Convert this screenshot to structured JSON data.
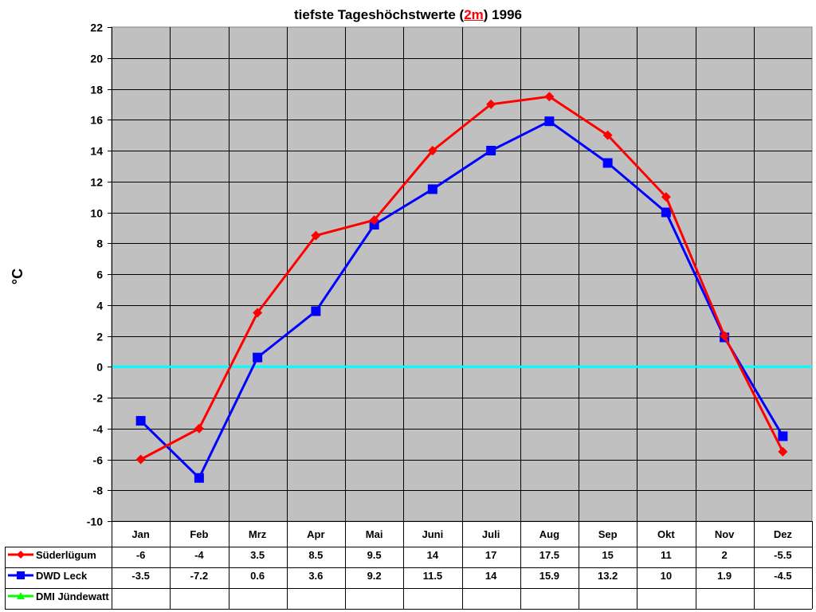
{
  "chart_data": {
    "type": "line",
    "title": "tiefste Tageshöchstwerte (2m) 1996",
    "title_parts": [
      "tiefste Tageshöchstwerte (",
      "2m",
      ") 1996"
    ],
    "xlabel": "",
    "ylabel": "°C",
    "ylim": [
      -10,
      22
    ],
    "ytick_step": 2,
    "yticks": [
      22,
      20,
      18,
      16,
      14,
      12,
      10,
      8,
      6,
      4,
      2,
      0,
      -2,
      -4,
      -6,
      -8,
      -10
    ],
    "grid": true,
    "zero_line_color": "#00ffff",
    "plot_background": "#c0c0c0",
    "legend_position": "data-table-left",
    "categories": [
      "Jan",
      "Feb",
      "Mrz",
      "Apr",
      "Mai",
      "Juni",
      "Juli",
      "Aug",
      "Sep",
      "Okt",
      "Nov",
      "Dez"
    ],
    "series": [
      {
        "name": "Süderlügum",
        "color": "#ff0000",
        "marker": "diamond",
        "values": [
          -6,
          -4,
          3.5,
          8.5,
          9.5,
          14,
          17,
          17.5,
          15,
          11,
          2,
          -5.5
        ],
        "labels": [
          "-6",
          "-4",
          "3.5",
          "8.5",
          "9.5",
          "14",
          "17",
          "17.5",
          "15",
          "11",
          "2",
          "-5.5"
        ]
      },
      {
        "name": "DWD Leck",
        "color": "#0000ff",
        "marker": "square",
        "values": [
          -3.5,
          -7.2,
          0.6,
          3.6,
          9.2,
          11.5,
          14,
          15.9,
          13.2,
          10,
          1.9,
          -4.5
        ],
        "labels": [
          "-3.5",
          "-7.2",
          "0.6",
          "3.6",
          "9.2",
          "11.5",
          "14",
          "15.9",
          "13.2",
          "10",
          "1.9",
          "-4.5"
        ]
      },
      {
        "name": "DMI Jündewatt",
        "color": "#00ff00",
        "marker": "triangle",
        "values": [
          null,
          null,
          null,
          null,
          null,
          null,
          null,
          null,
          null,
          null,
          null,
          null
        ],
        "labels": [
          "",
          "",
          "",
          "",
          "",
          "",
          "",
          "",
          "",
          "",
          "",
          ""
        ]
      }
    ]
  }
}
